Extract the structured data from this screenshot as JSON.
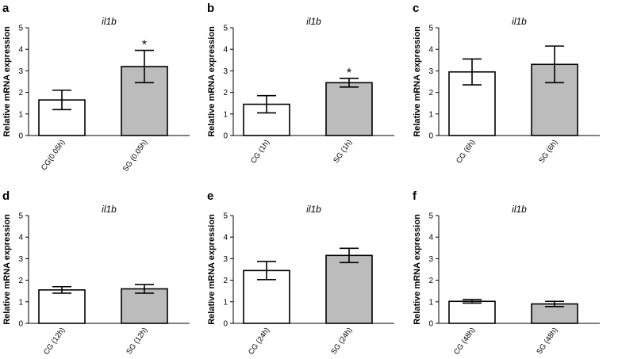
{
  "figure": {
    "panels": [
      "a",
      "b",
      "c",
      "d",
      "e",
      "f"
    ]
  },
  "colors": {
    "control_fill": "#ffffff",
    "treated_fill": "#bcbcbc",
    "stroke": "#000000"
  },
  "chart_data": [
    {
      "panel": "a",
      "type": "bar",
      "title": "il1b",
      "xlabel": "",
      "ylabel": "Relative mRNA expression",
      "ylim": [
        0,
        5
      ],
      "yticks": [
        "0",
        "1",
        "2",
        "3",
        "4",
        "5"
      ],
      "categories": [
        "CG(0.05h)",
        "SG (0.05h)"
      ],
      "values": [
        1.65,
        3.2
      ],
      "errors": [
        0.45,
        0.75
      ],
      "significance": [
        "",
        "*"
      ]
    },
    {
      "panel": "b",
      "type": "bar",
      "title": "il1b",
      "xlabel": "",
      "ylabel": "Relative mRNA expression",
      "ylim": [
        0,
        5
      ],
      "yticks": [
        "0",
        "1",
        "2",
        "3",
        "4",
        "5"
      ],
      "categories": [
        "CG (1h)",
        "SG (1h)"
      ],
      "values": [
        1.45,
        2.45
      ],
      "errors": [
        0.4,
        0.2
      ],
      "significance": [
        "",
        "*"
      ]
    },
    {
      "panel": "c",
      "type": "bar",
      "title": "il1b",
      "xlabel": "",
      "ylabel": "Relative mRNA expression",
      "ylim": [
        0,
        5
      ],
      "yticks": [
        "0",
        "1",
        "2",
        "3",
        "4",
        "5"
      ],
      "categories": [
        "CG (6h)",
        "SG (6h)"
      ],
      "values": [
        2.95,
        3.3
      ],
      "errors": [
        0.6,
        0.85
      ],
      "significance": [
        "",
        ""
      ]
    },
    {
      "panel": "d",
      "type": "bar",
      "title": "il1b",
      "xlabel": "",
      "ylabel": "Relative mRNA expression",
      "ylim": [
        0,
        5
      ],
      "yticks": [
        "0",
        "1",
        "2",
        "3",
        "4",
        "5"
      ],
      "categories": [
        "CG (12h)",
        "SG (12h)"
      ],
      "values": [
        1.55,
        1.6
      ],
      "errors": [
        0.15,
        0.2
      ],
      "significance": [
        "",
        ""
      ]
    },
    {
      "panel": "e",
      "type": "bar",
      "title": "il1b",
      "xlabel": "",
      "ylabel": "Relative mRNA expression",
      "ylim": [
        0,
        5
      ],
      "yticks": [
        "0",
        "1",
        "2",
        "3",
        "4",
        "5"
      ],
      "categories": [
        "CG (24h)",
        "SG (24h)"
      ],
      "values": [
        2.45,
        3.15
      ],
      "errors": [
        0.42,
        0.33
      ],
      "significance": [
        "",
        ""
      ]
    },
    {
      "panel": "f",
      "type": "bar",
      "title": "il1b",
      "xlabel": "",
      "ylabel": "Relative mRNA expression",
      "ylim": [
        0,
        5
      ],
      "yticks": [
        "0",
        "1",
        "2",
        "3",
        "4",
        "5"
      ],
      "categories": [
        "CG (48h)",
        "SG (48h)"
      ],
      "values": [
        1.02,
        0.9
      ],
      "errors": [
        0.08,
        0.12
      ],
      "significance": [
        "",
        ""
      ]
    }
  ]
}
